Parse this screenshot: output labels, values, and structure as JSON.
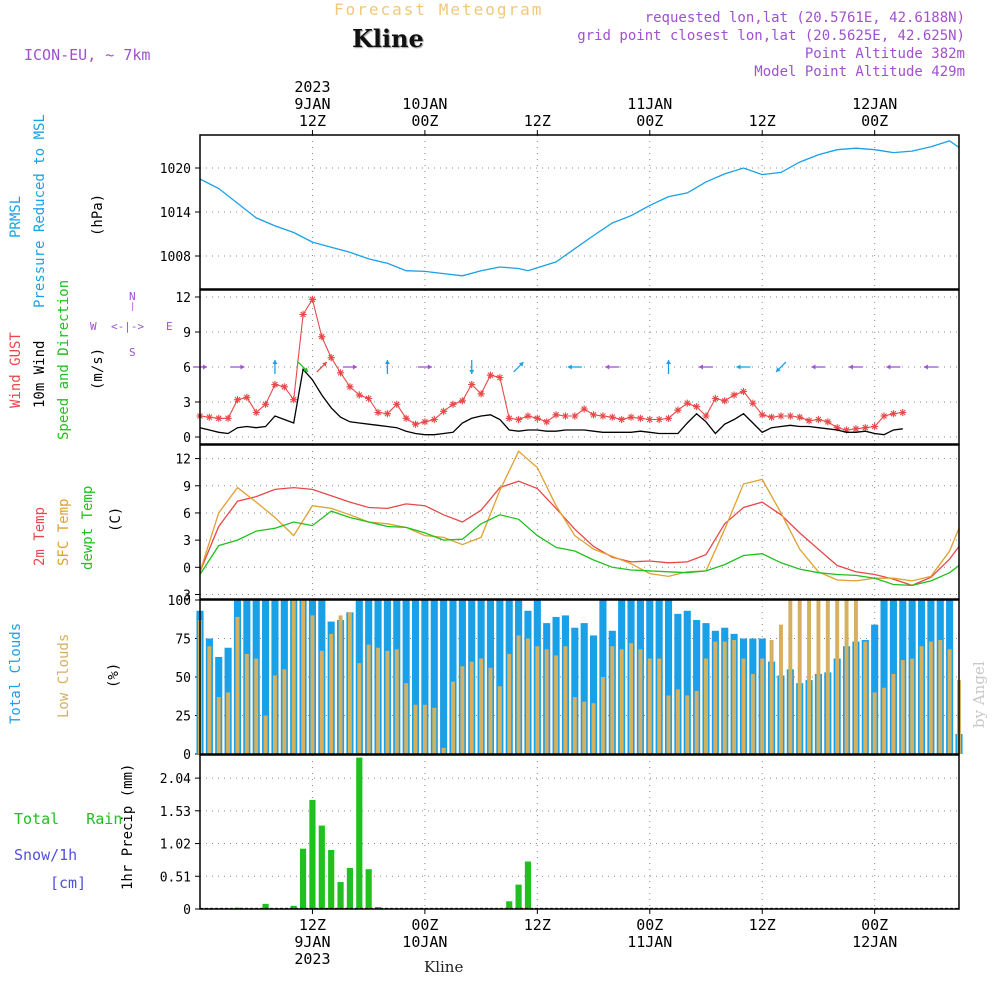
{
  "header": {
    "title": "Forecast Meteogram",
    "station": "Kline",
    "model": "ICON-EU, ~ 7km",
    "requested": "requested lon,lat (20.5761E, 42.6188N)",
    "gridpoint": "grid point closest lon,lat (20.5625E, 42.625N)",
    "point_alt": "Point Altitude 382m",
    "model_alt": "Model Point Altitude 429m"
  },
  "time_axis": {
    "top": [
      {
        "h": 12,
        "lines": [
          "2023",
          "9JAN",
          "12Z"
        ]
      },
      {
        "h": 24,
        "lines": [
          "10JAN",
          "00Z"
        ]
      },
      {
        "h": 36,
        "lines": [
          "12Z"
        ]
      },
      {
        "h": 48,
        "lines": [
          "11JAN",
          "00Z"
        ]
      },
      {
        "h": 60,
        "lines": [
          "12Z"
        ]
      },
      {
        "h": 72,
        "lines": [
          "12JAN",
          "00Z"
        ]
      }
    ],
    "bottom": [
      {
        "h": 12,
        "lines": [
          "12Z",
          "9JAN",
          "2023"
        ]
      },
      {
        "h": 24,
        "lines": [
          "00Z",
          "10JAN"
        ]
      },
      {
        "h": 36,
        "lines": [
          "12Z"
        ]
      },
      {
        "h": 48,
        "lines": [
          "00Z",
          "11JAN"
        ]
      },
      {
        "h": 60,
        "lines": [
          "12Z"
        ]
      },
      {
        "h": 72,
        "lines": [
          "00Z",
          "12JAN"
        ]
      }
    ],
    "station_bottom": "Kline",
    "signature": "by Angel"
  },
  "panel_labels": {
    "p1": [
      "PRMSL",
      "Pressure Reduced to MSL",
      "(hPa)"
    ],
    "p2": [
      "Wind GUST",
      "10m Wind",
      "Speed and Direction",
      "(m/s)"
    ],
    "compass": {
      "n": "N",
      "s": "S",
      "w": "W",
      "e": "E",
      "arrows": "<-|->"
    },
    "p3": [
      "2m Temp",
      "SFC Temp",
      "dewpt Temp",
      "(C)"
    ],
    "p4": [
      "Total Clouds",
      "Low Clouds",
      "(%)"
    ],
    "p5": [
      "Total",
      "Rain",
      "Snow/1h",
      "[cm]",
      "1hr Precip (mm)"
    ]
  },
  "colors": {
    "pressure": "#1aa0e6",
    "gust": "#e84848",
    "wind": "#000000",
    "t2m": "#e84848",
    "tsfc": "#e0a030",
    "dewpt": "#20c020",
    "total_clouds": "#1aa0e6",
    "low_clouds": "#d4b060",
    "rain": "#20c020",
    "label_blue": "#1aa0e6",
    "label_red": "#e84848",
    "label_orange": "#e0a030",
    "label_green": "#20c020",
    "label_purple": "#a050d0",
    "label_snow": "#5050e0"
  },
  "chart_data": [
    {
      "type": "line",
      "title": "PRMSL Pressure Reduced to MSL",
      "ylabel": "(hPa)",
      "ylim": [
        1003.5,
        1024.5
      ],
      "yticks": [
        1008,
        1014,
        1020
      ],
      "x_hours": [
        0,
        2,
        4,
        6,
        8,
        10,
        12,
        14,
        16,
        18,
        20,
        22,
        24,
        26,
        28,
        30,
        32,
        34,
        35,
        36,
        38,
        40,
        42,
        44,
        46,
        48,
        50,
        52,
        54,
        56,
        58,
        60,
        62,
        64,
        66,
        68,
        70,
        72,
        74,
        76,
        78,
        80,
        81
      ],
      "series": [
        {
          "name": "PRMSL",
          "values": [
            1018.5,
            1017.2,
            1015.2,
            1013.2,
            1012.1,
            1011.2,
            1009.9,
            1009.2,
            1008.5,
            1007.6,
            1007.0,
            1006.0,
            1005.9,
            1005.6,
            1005.3,
            1006.0,
            1006.5,
            1006.3,
            1006.0,
            1006.4,
            1007.2,
            1009.0,
            1010.8,
            1012.5,
            1013.5,
            1014.9,
            1016.1,
            1016.6,
            1018.1,
            1019.2,
            1020.0,
            1019.1,
            1019.4,
            1020.8,
            1021.8,
            1022.5,
            1022.7,
            1022.5,
            1022.1,
            1022.3,
            1022.9,
            1023.7,
            1022.8
          ]
        }
      ]
    },
    {
      "type": "line",
      "title": "Wind GUST / 10m Wind Speed and Direction",
      "ylabel": "(m/s)",
      "ylim": [
        -0.6,
        12.6
      ],
      "yticks": [
        0,
        3,
        6,
        9,
        12
      ],
      "x_hours": [
        0,
        1,
        2,
        3,
        4,
        5,
        6,
        7,
        8,
        9,
        10,
        11,
        12,
        13,
        14,
        15,
        16,
        17,
        18,
        19,
        20,
        21,
        22,
        23,
        24,
        25,
        26,
        27,
        28,
        29,
        30,
        31,
        32,
        33,
        34,
        35,
        36,
        37,
        38,
        39,
        40,
        41,
        42,
        43,
        44,
        45,
        46,
        47,
        48,
        49,
        50,
        51,
        52,
        53,
        54,
        55,
        56,
        57,
        58,
        59,
        60,
        61,
        62,
        63,
        64,
        65,
        66,
        67,
        68,
        69,
        70,
        71,
        72,
        73,
        74,
        75,
        76,
        77,
        78,
        79,
        80,
        81
      ],
      "series": [
        {
          "name": "Wind GUST",
          "values": [
            1.8,
            1.7,
            1.6,
            1.6,
            3.2,
            3.4,
            2.1,
            2.8,
            4.5,
            4.3,
            3.2,
            10.5,
            11.8,
            8.6,
            6.8,
            5.5,
            4.3,
            3.6,
            3.3,
            2.1,
            2.0,
            2.8,
            1.6,
            1.1,
            1.3,
            1.5,
            2.2,
            2.8,
            3.1,
            4.5,
            3.7,
            5.3,
            5.1,
            1.6,
            1.5,
            1.8,
            1.6,
            1.3,
            1.9,
            1.8,
            1.8,
            2.4,
            1.9,
            1.8,
            1.7,
            1.5,
            1.7,
            1.6,
            1.5,
            1.5,
            1.6,
            2.3,
            2.9,
            2.6,
            1.8,
            3.3,
            3.1,
            3.6,
            3.9,
            2.9,
            1.9,
            1.7,
            1.8,
            1.8,
            1.7,
            1.4,
            1.5,
            1.3,
            0.8,
            0.6,
            0.7,
            0.8,
            0.9,
            1.8,
            2.0,
            2.1
          ]
        },
        {
          "name": "10m Wind",
          "values": [
            0.8,
            0.6,
            0.4,
            0.3,
            0.8,
            0.9,
            0.8,
            0.9,
            1.8,
            1.5,
            1.2,
            5.8,
            4.9,
            3.6,
            2.5,
            1.7,
            1.3,
            1.2,
            1.1,
            1.0,
            0.9,
            0.8,
            0.5,
            0.3,
            0.2,
            0.2,
            0.3,
            0.4,
            1.2,
            1.6,
            1.8,
            1.9,
            1.5,
            0.6,
            0.5,
            0.6,
            0.6,
            0.5,
            0.5,
            0.6,
            0.6,
            0.6,
            0.5,
            0.4,
            0.4,
            0.4,
            0.4,
            0.5,
            0.4,
            0.3,
            0.3,
            0.3,
            1.2,
            2.0,
            1.3,
            0.3,
            1.1,
            1.5,
            2.0,
            1.2,
            0.4,
            0.8,
            0.9,
            1.0,
            0.9,
            0.9,
            0.8,
            0.7,
            0.6,
            0.4,
            0.4,
            0.5,
            0.3,
            0.2,
            0.6,
            0.7
          ]
        }
      ],
      "direction_arrows": [
        {
          "hour": 0,
          "dir": "east",
          "color": "#a050d0"
        },
        {
          "hour": 4,
          "dir": "east",
          "color": "#a050d0"
        },
        {
          "hour": 8,
          "dir": "north",
          "color": "#1aa0e6"
        },
        {
          "hour": 11,
          "dir": "south-east",
          "color": "#20c020"
        },
        {
          "hour": 13,
          "dir": "north-east",
          "color": "#e84848"
        },
        {
          "hour": 16,
          "dir": "east",
          "color": "#a050d0"
        },
        {
          "hour": 20,
          "dir": "north",
          "color": "#1aa0e6"
        },
        {
          "hour": 24,
          "dir": "east",
          "color": "#a050d0"
        },
        {
          "hour": 29,
          "dir": "south",
          "color": "#1aa0e6"
        },
        {
          "hour": 34,
          "dir": "north-east",
          "color": "#1aa0e6"
        },
        {
          "hour": 40,
          "dir": "west",
          "color": "#1aa0e6"
        },
        {
          "hour": 44,
          "dir": "west",
          "color": "#a050d0"
        },
        {
          "hour": 50,
          "dir": "north",
          "color": "#1aa0e6"
        },
        {
          "hour": 54,
          "dir": "west",
          "color": "#a050d0"
        },
        {
          "hour": 58,
          "dir": "west",
          "color": "#1aa0e6"
        },
        {
          "hour": 62,
          "dir": "south-west",
          "color": "#1aa0e6"
        },
        {
          "hour": 66,
          "dir": "west",
          "color": "#a050d0"
        },
        {
          "hour": 70,
          "dir": "west",
          "color": "#a050d0"
        },
        {
          "hour": 74,
          "dir": "west",
          "color": "#a050d0"
        },
        {
          "hour": 78,
          "dir": "west",
          "color": "#a050d0"
        }
      ]
    },
    {
      "type": "line",
      "title": "2m Temp / SFC Temp / dewpt Temp",
      "ylabel": "(C)",
      "ylim": [
        -3.5,
        13.5
      ],
      "yticks": [
        -3,
        0,
        3,
        6,
        9,
        12
      ],
      "x_hours": [
        0,
        2,
        4,
        6,
        8,
        10,
        12,
        14,
        16,
        18,
        20,
        22,
        24,
        26,
        28,
        30,
        32,
        34,
        36,
        38,
        40,
        42,
        44,
        46,
        48,
        50,
        52,
        54,
        56,
        58,
        60,
        62,
        64,
        66,
        68,
        70,
        72,
        74,
        76,
        78,
        80,
        81
      ],
      "series": [
        {
          "name": "2m Temp",
          "values": [
            -0.5,
            4.5,
            7.3,
            7.8,
            8.6,
            8.8,
            8.6,
            7.9,
            7.2,
            6.6,
            6.5,
            7.0,
            6.8,
            5.8,
            5.0,
            6.3,
            8.8,
            9.5,
            8.7,
            6.5,
            4.2,
            2.3,
            1.1,
            0.6,
            0.7,
            0.5,
            0.6,
            1.4,
            4.8,
            6.6,
            7.2,
            5.8,
            3.8,
            2.0,
            0.2,
            -0.5,
            -0.8,
            -1.3,
            -2.0,
            -1.1,
            0.9,
            2.3
          ]
        },
        {
          "name": "SFC Temp",
          "values": [
            -0.5,
            6.0,
            8.8,
            7.2,
            5.5,
            3.5,
            6.8,
            6.5,
            5.8,
            5.0,
            4.8,
            4.4,
            3.5,
            3.3,
            2.5,
            3.3,
            8.5,
            12.8,
            11.0,
            6.8,
            3.5,
            2.0,
            1.2,
            0.4,
            -0.7,
            -1.0,
            -0.5,
            -0.4,
            4.2,
            9.2,
            9.7,
            6.0,
            2.0,
            -0.5,
            -1.4,
            -1.5,
            -1.2,
            -1.2,
            -1.5,
            -1.0,
            1.8,
            4.3
          ]
        },
        {
          "name": "dewpt Temp",
          "values": [
            -0.8,
            2.4,
            3.0,
            4.0,
            4.3,
            5.0,
            4.6,
            6.2,
            5.5,
            5.0,
            4.5,
            4.4,
            3.8,
            3.0,
            3.1,
            4.8,
            5.8,
            5.3,
            3.5,
            2.2,
            1.8,
            0.8,
            0.0,
            -0.3,
            -0.4,
            -0.5,
            -0.6,
            -0.4,
            0.3,
            1.3,
            1.5,
            0.5,
            -0.2,
            -0.6,
            -0.8,
            -0.9,
            -1.2,
            -1.9,
            -2.0,
            -1.5,
            -0.6,
            0.2
          ]
        }
      ]
    },
    {
      "type": "bar",
      "title": "Total Clouds / Low Clouds",
      "ylabel": "(%)",
      "ylim": [
        0,
        100
      ],
      "yticks": [
        0,
        25,
        50,
        75,
        100
      ],
      "x_hours": [
        0,
        1,
        2,
        3,
        4,
        5,
        6,
        7,
        8,
        9,
        10,
        11,
        12,
        13,
        14,
        15,
        16,
        17,
        18,
        19,
        20,
        21,
        22,
        23,
        24,
        25,
        26,
        27,
        28,
        29,
        30,
        31,
        32,
        33,
        34,
        35,
        36,
        37,
        38,
        39,
        40,
        41,
        42,
        43,
        44,
        45,
        46,
        47,
        48,
        49,
        50,
        51,
        52,
        53,
        54,
        55,
        56,
        57,
        58,
        59,
        60,
        61,
        62,
        63,
        64,
        65,
        66,
        67,
        68,
        69,
        70,
        71,
        72,
        73,
        74,
        75,
        76,
        77,
        78,
        79,
        80,
        81
      ],
      "series": [
        {
          "name": "Total Clouds",
          "values": [
            93,
            75,
            63,
            69,
            100,
            100,
            100,
            100,
            100,
            100,
            100,
            100,
            100,
            100,
            86,
            87,
            92,
            100,
            100,
            100,
            100,
            100,
            100,
            100,
            100,
            100,
            100,
            100,
            100,
            100,
            100,
            100,
            100,
            100,
            100,
            93,
            100,
            85,
            89,
            90,
            82,
            85,
            77,
            100,
            80,
            100,
            100,
            100,
            100,
            100,
            100,
            91,
            93,
            87,
            85,
            80,
            82,
            78,
            75,
            75,
            75,
            60,
            51,
            55,
            46,
            48,
            52,
            53,
            62,
            70,
            73,
            74,
            84,
            100,
            100,
            100,
            100,
            100,
            100,
            100,
            100,
            13
          ]
        },
        {
          "name": "Low Clouds",
          "values": [
            87,
            70,
            37,
            40,
            89,
            65,
            62,
            25,
            51,
            55,
            100,
            100,
            90,
            67,
            78,
            90,
            92,
            59,
            71,
            69,
            67,
            68,
            46,
            32,
            32,
            30,
            4,
            47,
            57,
            60,
            62,
            56,
            44,
            65,
            77,
            75,
            70,
            68,
            64,
            70,
            37,
            34,
            33,
            50,
            70,
            68,
            72,
            68,
            62,
            62,
            38,
            42,
            38,
            41,
            62,
            73,
            73,
            74,
            62,
            52,
            62,
            74,
            84,
            100,
            100,
            100,
            100,
            100,
            100,
            100,
            100,
            73,
            40,
            43,
            52,
            61,
            62,
            70,
            73,
            74,
            68,
            48
          ]
        }
      ]
    },
    {
      "type": "bar",
      "title": "Total Rain / Snow",
      "ylabel": "1hr Precip (mm)",
      "ylim": [
        0,
        2.4
      ],
      "yticks": [
        0,
        0.51,
        1.02,
        1.53,
        2.04
      ],
      "x_hours": [
        4,
        7,
        10,
        11,
        12,
        13,
        14,
        15,
        16,
        17,
        18,
        19,
        33,
        34,
        35
      ],
      "series": [
        {
          "name": "Total Rain",
          "values": [
            0.02,
            0.08,
            0.05,
            0.94,
            1.7,
            1.3,
            0.92,
            0.42,
            0.64,
            2.36,
            0.62,
            0.03,
            0.12,
            0.38,
            0.74
          ]
        }
      ]
    }
  ]
}
